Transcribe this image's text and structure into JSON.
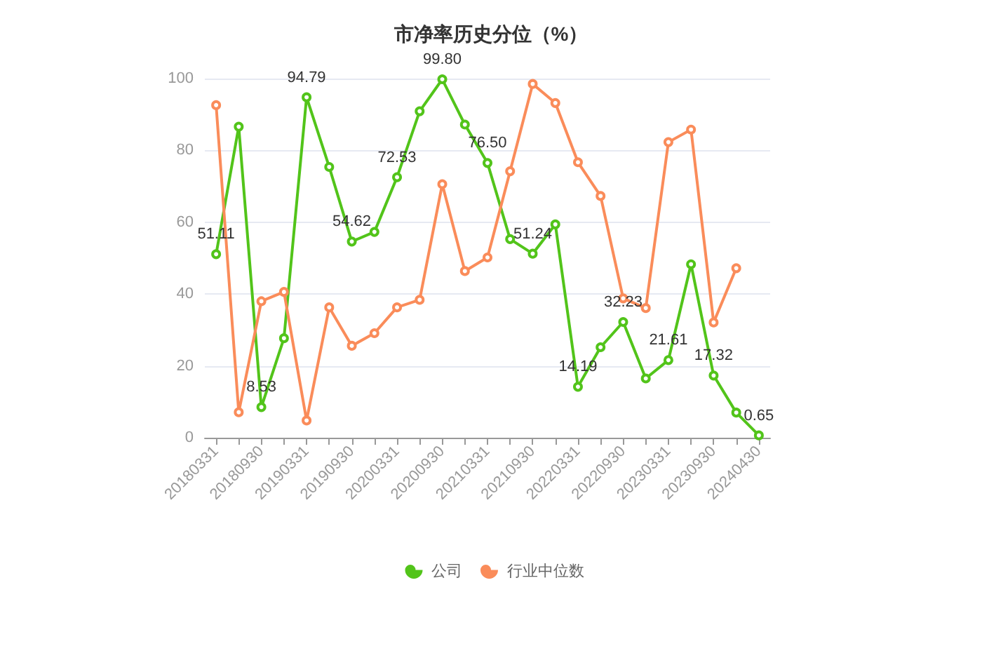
{
  "chart_data": {
    "type": "line",
    "title": "市净率历史分位（%）",
    "categories": [
      "20180331",
      null,
      "20180930",
      null,
      "20190331",
      null,
      "20190930",
      null,
      "20200331",
      null,
      "20200930",
      null,
      "20210331",
      null,
      "20210930",
      null,
      "20220331",
      null,
      "20220930",
      null,
      "20230331",
      null,
      "20230930",
      null,
      "20240430"
    ],
    "series": [
      {
        "name": "公司",
        "color": "#52c41a",
        "values": [
          51.11,
          86.6,
          8.53,
          27.7,
          94.79,
          75.4,
          54.62,
          57.3,
          72.53,
          90.9,
          99.8,
          87.2,
          76.5,
          55.3,
          51.24,
          59.4,
          14.19,
          25.2,
          32.23,
          16.5,
          21.61,
          48.3,
          17.32,
          7.0,
          0.65
        ],
        "value_labels": [
          "51.11",
          null,
          "8.53",
          null,
          "94.79",
          null,
          "54.62",
          null,
          "72.53",
          null,
          "99.80",
          null,
          "76.50",
          null,
          "51.24",
          null,
          "14.19",
          null,
          "32.23",
          null,
          "21.61",
          null,
          "17.32",
          null,
          "0.65"
        ]
      },
      {
        "name": "行业中位数",
        "color": "#fa8c5a",
        "values": [
          92.6,
          7.1,
          38.0,
          40.6,
          4.8,
          36.3,
          25.6,
          29.1,
          36.3,
          38.4,
          70.6,
          46.4,
          50.2,
          74.2,
          98.5,
          93.2,
          76.7,
          67.3,
          38.8,
          36.1,
          82.3,
          85.8,
          32.1,
          47.2,
          null
        ]
      }
    ],
    "ylim": [
      0,
      100
    ],
    "yticks": [
      0,
      20,
      40,
      60,
      80,
      100
    ],
    "grid": "y",
    "legend": "bottom",
    "marker": "circle",
    "line_style": "solid"
  }
}
